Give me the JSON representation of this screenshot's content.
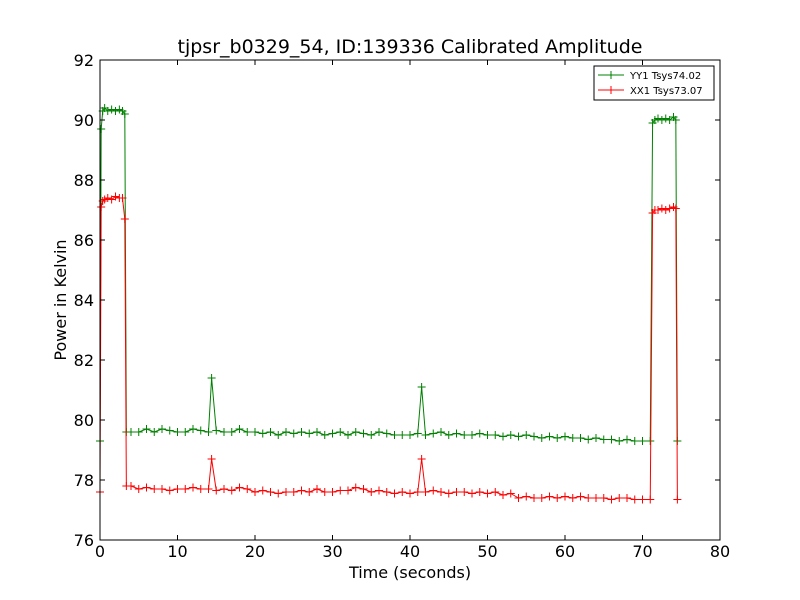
{
  "chart_data": {
    "type": "line",
    "title": "tjpsr_b0329_54, ID:139336 Calibrated Amplitude",
    "xlabel": "Time (seconds)",
    "ylabel": "Power in Kelvin",
    "xlim": [
      0,
      80
    ],
    "ylim": [
      76,
      92
    ],
    "xticks": [
      0,
      10,
      20,
      30,
      40,
      50,
      60,
      70,
      80
    ],
    "yticks": [
      76,
      78,
      80,
      82,
      84,
      86,
      88,
      90,
      92
    ],
    "legend_position": "top-right",
    "series": [
      {
        "name": "YY1 Tsys74.02",
        "color": "#008000",
        "x": [
          0,
          0.15,
          0.35,
          0.6,
          1.0,
          1.5,
          2.0,
          2.5,
          2.9,
          3.2,
          3.4,
          4.0,
          5.0,
          6.0,
          7.0,
          8.0,
          9.0,
          10.0,
          11.0,
          12.0,
          13.0,
          14.0,
          14.4,
          15.0,
          16.0,
          17.0,
          18.0,
          19.0,
          20.0,
          21.0,
          22.0,
          23.0,
          24.0,
          25.0,
          26.0,
          27.0,
          28.0,
          29.0,
          30.0,
          31.0,
          32.0,
          33.0,
          34.0,
          35.0,
          36.0,
          37.0,
          38.0,
          39.0,
          40.0,
          41.0,
          41.5,
          42.0,
          43.0,
          44.0,
          45.0,
          46.0,
          47.0,
          48.0,
          49.0,
          50.0,
          51.0,
          52.0,
          53.0,
          54.0,
          55.0,
          56.0,
          57.0,
          58.0,
          59.0,
          60.0,
          61.0,
          62.0,
          63.0,
          64.0,
          65.0,
          66.0,
          67.0,
          68.0,
          69.0,
          70.0,
          71.0,
          71.3,
          71.6,
          72.0,
          72.5,
          73.0,
          73.5,
          74.0,
          74.3,
          74.5
        ],
        "y": [
          79.3,
          89.7,
          90.3,
          90.4,
          90.3,
          90.35,
          90.3,
          90.35,
          90.3,
          90.2,
          79.6,
          79.6,
          79.6,
          79.7,
          79.6,
          79.7,
          79.65,
          79.6,
          79.6,
          79.7,
          79.65,
          79.6,
          81.4,
          79.65,
          79.6,
          79.6,
          79.7,
          79.6,
          79.6,
          79.55,
          79.6,
          79.5,
          79.6,
          79.55,
          79.6,
          79.55,
          79.6,
          79.5,
          79.55,
          79.6,
          79.5,
          79.6,
          79.55,
          79.5,
          79.6,
          79.55,
          79.5,
          79.5,
          79.5,
          79.55,
          81.1,
          79.5,
          79.55,
          79.6,
          79.5,
          79.55,
          79.5,
          79.5,
          79.55,
          79.5,
          79.5,
          79.45,
          79.5,
          79.45,
          79.5,
          79.45,
          79.4,
          79.45,
          79.4,
          79.45,
          79.4,
          79.4,
          79.35,
          79.4,
          79.35,
          79.35,
          79.3,
          79.35,
          79.3,
          79.3,
          79.3,
          89.9,
          90.0,
          90.05,
          90.0,
          90.05,
          90.0,
          90.1,
          90.0,
          79.3
        ]
      },
      {
        "name": "XX1 Tsys73.07",
        "color": "#ff0000",
        "x": [
          0,
          0.15,
          0.35,
          0.6,
          1.0,
          1.5,
          2.0,
          2.5,
          2.9,
          3.2,
          3.4,
          4.0,
          5.0,
          6.0,
          7.0,
          8.0,
          9.0,
          10.0,
          11.0,
          12.0,
          13.0,
          14.0,
          14.4,
          15.0,
          16.0,
          17.0,
          18.0,
          19.0,
          20.0,
          21.0,
          22.0,
          23.0,
          24.0,
          25.0,
          26.0,
          27.0,
          28.0,
          29.0,
          30.0,
          31.0,
          32.0,
          33.0,
          34.0,
          35.0,
          36.0,
          37.0,
          38.0,
          39.0,
          40.0,
          41.0,
          41.5,
          42.0,
          43.0,
          44.0,
          45.0,
          46.0,
          47.0,
          48.0,
          49.0,
          50.0,
          51.0,
          52.0,
          53.0,
          54.0,
          55.0,
          56.0,
          57.0,
          58.0,
          59.0,
          60.0,
          61.0,
          62.0,
          63.0,
          64.0,
          65.0,
          66.0,
          67.0,
          68.0,
          69.0,
          70.0,
          71.0,
          71.3,
          71.6,
          72.0,
          72.5,
          73.0,
          73.5,
          74.0,
          74.3,
          74.5
        ],
        "y": [
          77.6,
          87.1,
          87.3,
          87.35,
          87.4,
          87.35,
          87.45,
          87.4,
          87.4,
          86.7,
          77.8,
          77.8,
          77.7,
          77.75,
          77.7,
          77.7,
          77.65,
          77.7,
          77.7,
          77.75,
          77.7,
          77.7,
          78.7,
          77.65,
          77.7,
          77.65,
          77.75,
          77.7,
          77.6,
          77.65,
          77.6,
          77.55,
          77.6,
          77.6,
          77.65,
          77.6,
          77.7,
          77.6,
          77.6,
          77.65,
          77.65,
          77.75,
          77.7,
          77.6,
          77.65,
          77.6,
          77.55,
          77.6,
          77.55,
          77.6,
          78.7,
          77.6,
          77.65,
          77.6,
          77.55,
          77.6,
          77.6,
          77.55,
          77.6,
          77.55,
          77.6,
          77.5,
          77.55,
          77.4,
          77.45,
          77.4,
          77.4,
          77.45,
          77.4,
          77.45,
          77.4,
          77.45,
          77.4,
          77.4,
          77.4,
          77.35,
          77.4,
          77.4,
          77.35,
          77.35,
          77.35,
          86.9,
          87.0,
          87.0,
          87.05,
          87.0,
          87.05,
          87.1,
          87.05,
          77.35
        ]
      }
    ]
  }
}
